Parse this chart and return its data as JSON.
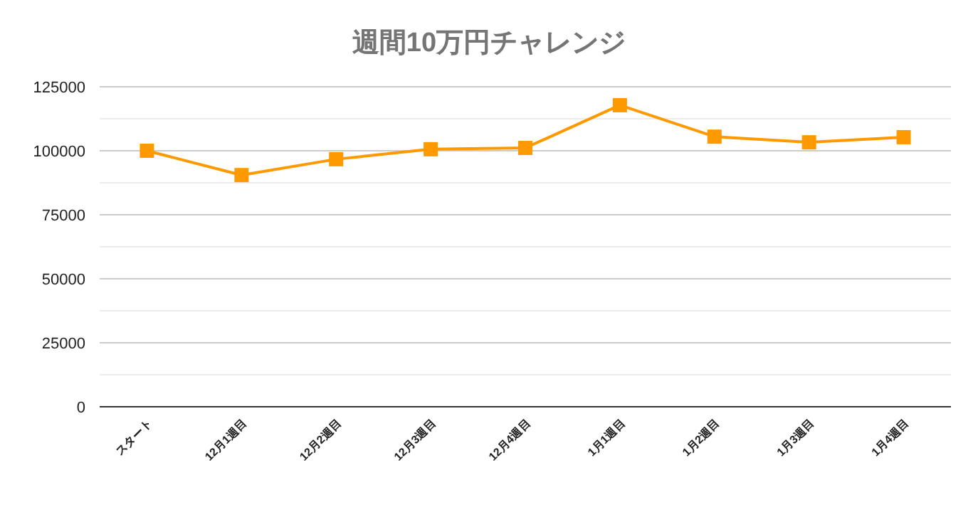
{
  "chart_data": {
    "type": "line",
    "title": "週間10万円チャレンジ",
    "categories": [
      "スタート",
      "12月1週目",
      "12月2週目",
      "12月3週目",
      "12月4週目",
      "1月1週目",
      "1月2週目",
      "1月3週目",
      "1月4週目"
    ],
    "series": [
      {
        "color": "#ff9900",
        "values": [
          100000,
          90500,
          96700,
          100600,
          101100,
          117800,
          105500,
          103300,
          105300
        ]
      }
    ],
    "ylim": [
      0,
      125000
    ],
    "yticks": [
      0,
      {
        "value": 12500,
        "label": null
      },
      25000,
      {
        "value": 37500,
        "label": null
      },
      50000,
      {
        "value": 62500,
        "label": null
      },
      75000,
      {
        "value": 87500,
        "label": null
      },
      100000,
      {
        "value": 112500,
        "label": null
      },
      125000
    ],
    "grid": "y",
    "marker": "square",
    "line_style": "solid"
  }
}
